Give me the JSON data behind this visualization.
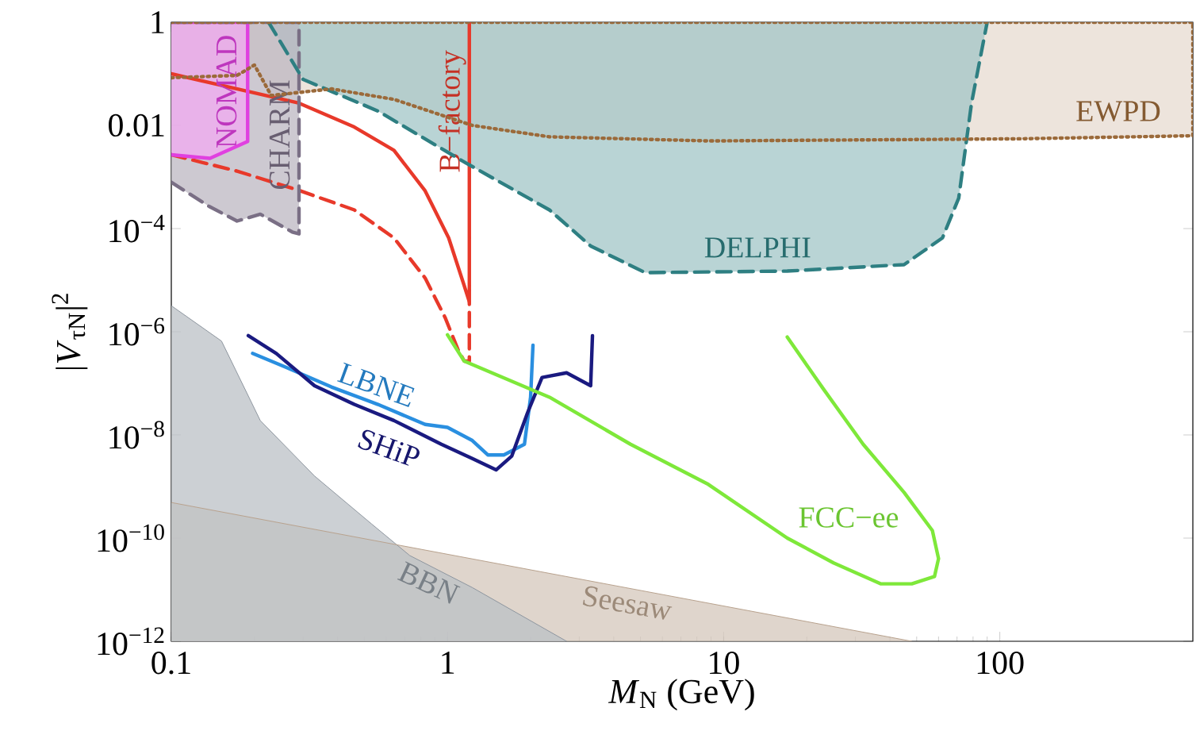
{
  "chart_data": {
    "type": "line",
    "xlabel": "*M*$_{N}$ (GeV)",
    "ylabel": "|*V*$_{τN}$|$^{2}$",
    "log": "xy",
    "xlim": [
      0.1,
      500
    ],
    "ylim": [
      1e-12,
      1
    ],
    "xticks": [
      0.1,
      1,
      10,
      100
    ],
    "yticks": [
      {
        "value": 1e-12,
        "label": "10$^{−12}$"
      },
      {
        "value": 1e-10,
        "label": "10$^{−10}$"
      },
      {
        "value": 1e-08,
        "label": "10$^{−8}$"
      },
      {
        "value": 1e-06,
        "label": "10$^{−6}$"
      },
      {
        "value": 0.0001,
        "label": "10$^{−4}$"
      },
      0.01,
      1
    ],
    "series": [
      {
        "type": "area",
        "color": "#9b6a3a",
        "line_style": "dotted",
        "x": [
          0.1,
          0.173,
          0.2,
          0.23,
          0.38,
          0.64,
          1.23,
          2.34,
          8.8,
          120,
          500,
          500,
          0.1
        ],
        "values": [
          0.084,
          0.093,
          0.148,
          0.038,
          0.051,
          0.032,
          0.01,
          0.006,
          0.005,
          0.0055,
          0.0063,
          1,
          1
        ]
      },
      {
        "type": "area",
        "color": "#2e7f82",
        "line_style": "dashed",
        "x": [
          0.225,
          0.3,
          0.56,
          1.16,
          2.34,
          3.3,
          5.2,
          17,
          45,
          62,
          71,
          79,
          90
        ],
        "values": [
          1,
          0.078,
          0.019,
          0.0019,
          0.00023,
          4.6e-05,
          1.4e-05,
          1.5e-05,
          2e-05,
          6.6e-05,
          0.00039,
          0.027,
          1
        ]
      },
      {
        "type": "area",
        "color": "#7a6f85",
        "line_style": "dashed",
        "x": [
          0.1,
          0.137,
          0.173,
          0.21,
          0.274,
          0.29,
          0.29,
          0.1
        ],
        "values": [
          0.00079,
          0.00027,
          0.00014,
          0.00019,
          8.6e-05,
          7.9e-05,
          1,
          1
        ]
      },
      {
        "type": "area",
        "color": "#e040e0",
        "line_style": "solid",
        "x": [
          0.1,
          0.138,
          0.189,
          0.189,
          0.1
        ],
        "values": [
          0.0027,
          0.0023,
          0.0049,
          1,
          1
        ]
      },
      {
        "type": "area",
        "color": "#b8a28e",
        "line_style": "solid",
        "x": [
          0.1,
          48
        ],
        "values": [
          4.9e-10,
          1e-12
        ]
      },
      {
        "type": "area",
        "color": "#8e969f",
        "line_style": "solid",
        "x": [
          0.1,
          0.152,
          0.21,
          0.33,
          0.53,
          0.73,
          1.23,
          2.7
        ],
        "values": [
          3.2e-06,
          6.6e-07,
          1.9e-08,
          1.6e-09,
          1.9e-10,
          4.6e-11,
          1.1e-11,
          1e-12
        ]
      },
      {
        "color": "#e8392a",
        "line_style": "solid",
        "x": [
          0.1,
          0.29,
          0.46,
          0.64,
          0.83,
          1.01,
          1.15,
          1.2,
          1.2
        ],
        "values": [
          0.1,
          0.027,
          0.0093,
          0.0033,
          0.00054,
          6.6e-05,
          7.8e-06,
          3.8e-06,
          1
        ]
      },
      {
        "color": "#e8392a",
        "line_style": "dashed",
        "x": [
          0.1,
          0.173,
          0.29,
          0.46,
          0.64,
          0.83,
          0.98,
          1.09,
          1.15,
          1.2,
          1.2
        ],
        "values": [
          0.0027,
          0.0013,
          0.00055,
          0.00023,
          6.6e-05,
          1.1e-05,
          1.9e-06,
          4.6e-07,
          2.7e-07,
          2.7e-07,
          3.8e-06
        ]
      },
      {
        "color": "#2a8fe0",
        "line_style": "solid",
        "x": [
          0.197,
          0.257,
          0.38,
          0.56,
          0.83,
          1.0,
          1.23,
          1.4,
          1.6,
          1.9,
          2.0,
          2.04
        ],
        "values": [
          3.8e-07,
          2.1e-07,
          8.5e-08,
          3.9e-08,
          1.6e-08,
          1.4e-08,
          7.8e-09,
          4.1e-09,
          4.1e-09,
          6.6e-09,
          5.4e-08,
          5.5e-07
        ]
      },
      {
        "color": "#1a1a80",
        "line_style": "solid",
        "x": [
          0.19,
          0.24,
          0.33,
          0.46,
          0.64,
          0.95,
          1.23,
          1.5,
          1.71,
          1.95,
          2.2,
          2.7,
          3.3,
          3.35
        ],
        "values": [
          8.4e-07,
          3.8e-07,
          9e-08,
          3.9e-08,
          1.9e-08,
          6.6e-09,
          3.5e-09,
          2.1e-09,
          3.9e-09,
          2.7e-08,
          1.3e-07,
          1.6e-07,
          9e-08,
          8.4e-07
        ]
      },
      {
        "color": "#7ee83a",
        "line_style": "solid",
        "x": [
          1.0,
          1.15,
          2.34,
          4.6,
          8.8,
          17,
          25,
          37,
          48,
          58,
          60,
          57,
          45,
          32,
          23,
          17
        ],
        "values": [
          8.7e-07,
          2.7e-07,
          5.4e-08,
          6.6e-09,
          1.1e-09,
          1e-10,
          3.3e-11,
          1.3e-11,
          1.3e-11,
          1.8e-11,
          4e-11,
          1.4e-10,
          7.7e-10,
          6.6e-09,
          7.7e-08,
          7.9e-07
        ]
      }
    ],
    "annotations": [
      "NOMAD",
      "CHARM",
      "B−factory",
      "DELPHI",
      "EWPD",
      "LBNE",
      "SHiP",
      "FCC−ee",
      "BBN",
      "Seesaw"
    ]
  }
}
